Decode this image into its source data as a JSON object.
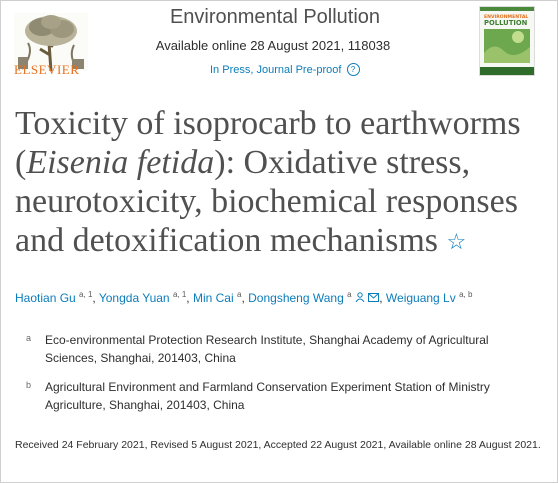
{
  "header": {
    "publisher": "ELSEVIER",
    "journal": "Environmental Pollution",
    "availability": "Available online 28 August 2021, 118038",
    "status": "In Press, Journal Pre-proof",
    "cover_text_1": "ENVIRONMENTAL",
    "cover_text_2": "POLLUTION"
  },
  "article": {
    "title_part1": "Toxicity of isoprocarb to earthworms (",
    "title_italic": "Eisenia fetida",
    "title_part2": "): Oxidative stress, neurotoxicity, biochemical responses and detoxification mechanisms"
  },
  "authors": [
    {
      "name": "Haotian Gu",
      "sup": "a, 1"
    },
    {
      "name": "Yongda Yuan",
      "sup": "a, 1"
    },
    {
      "name": "Min Cai",
      "sup": "a"
    },
    {
      "name": "Dongsheng Wang",
      "sup": "a"
    },
    {
      "name": "Weiguang Lv",
      "sup": "a, b"
    }
  ],
  "affiliations": [
    {
      "mark": "a",
      "text": "Eco-environmental Protection Research Institute, Shanghai Academy of Agricultural Sciences, Shanghai, 201403, China"
    },
    {
      "mark": "b",
      "text": "Agricultural Environment and Farmland Conservation Experiment Station of Ministry Agriculture, Shanghai, 201403, China"
    }
  ],
  "history": "Received 24 February 2021, Revised 5 August 2021, Accepted 22 August 2021, Available online 28 August 2021.",
  "colors": {
    "link": "#0c7dbb",
    "elsevier_orange": "#e9711c",
    "title_gray": "#505050"
  },
  "icons": [
    "elsevier-tree-logo",
    "journal-cover",
    "question-icon",
    "star-icon",
    "person-icon",
    "envelope-icon"
  ]
}
